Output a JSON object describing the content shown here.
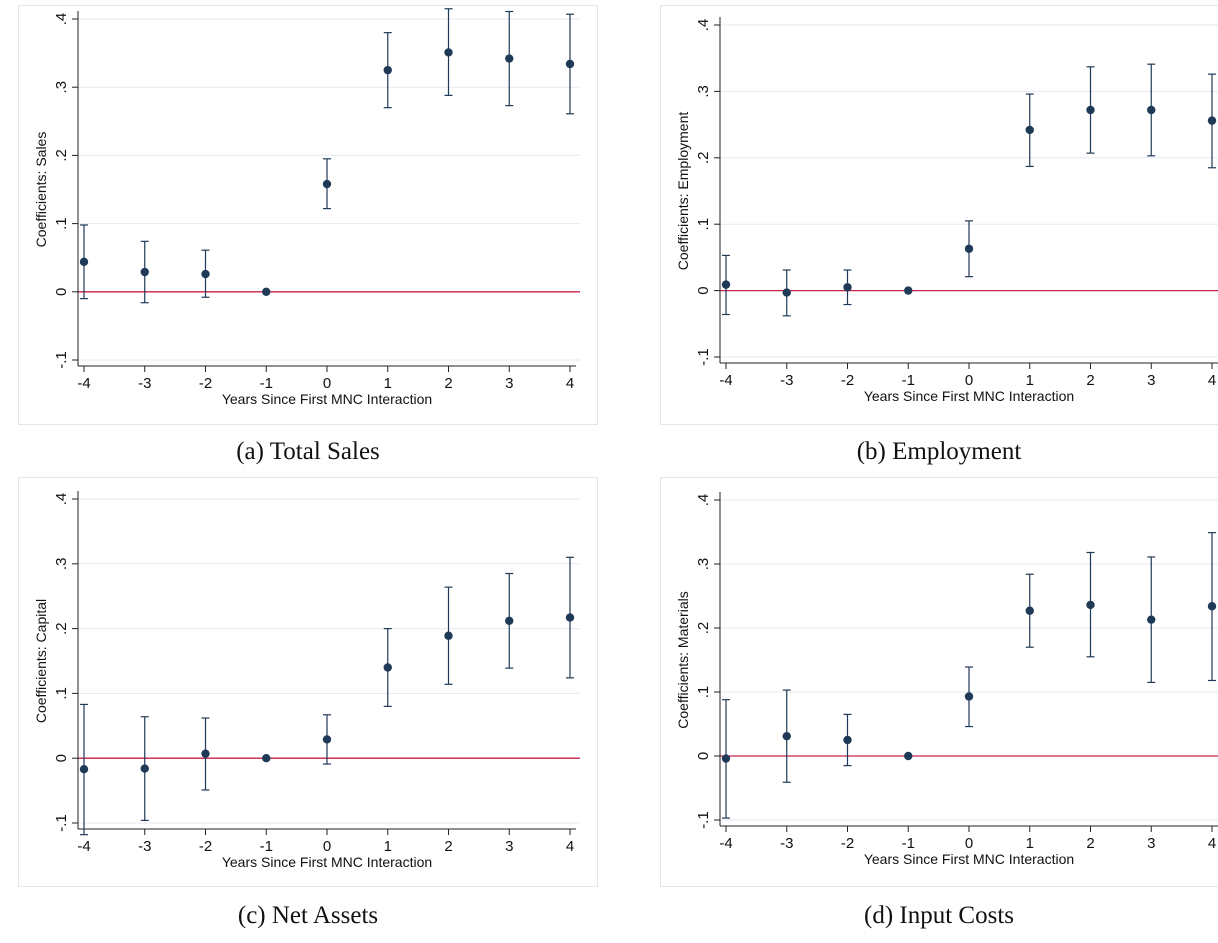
{
  "colors": {
    "marker": "#1f3a57",
    "zero_line": "#c8224a",
    "grid": "#e8eaf0",
    "axis": "#222222"
  },
  "chart_data": [
    {
      "type": "scatter",
      "caption": "(a) Total Sales",
      "xlabel": "Years Since First MNC Interaction",
      "ylabel": "Coefficients: Sales",
      "xlim": [
        -4,
        4
      ],
      "ylim": [
        -0.1,
        0.4
      ],
      "xticks": [
        "-4",
        "-3",
        "-2",
        "-1",
        "0",
        "1",
        "2",
        "3",
        "4"
      ],
      "yticks": [
        "-.1",
        "0",
        ".1",
        ".2",
        ".3",
        ".4"
      ],
      "grid": true,
      "points": [
        {
          "x": -4,
          "y": 0.044,
          "lo": -0.01,
          "hi": 0.098
        },
        {
          "x": -3,
          "y": 0.029,
          "lo": -0.016,
          "hi": 0.074
        },
        {
          "x": -2,
          "y": 0.026,
          "lo": -0.008,
          "hi": 0.061
        },
        {
          "x": -1,
          "y": 0.0,
          "lo": 0.0,
          "hi": 0.0
        },
        {
          "x": 0,
          "y": 0.158,
          "lo": 0.122,
          "hi": 0.195
        },
        {
          "x": 1,
          "y": 0.325,
          "lo": 0.27,
          "hi": 0.38
        },
        {
          "x": 2,
          "y": 0.351,
          "lo": 0.288,
          "hi": 0.415
        },
        {
          "x": 3,
          "y": 0.342,
          "lo": 0.273,
          "hi": 0.411
        },
        {
          "x": 4,
          "y": 0.334,
          "lo": 0.261,
          "hi": 0.407
        }
      ]
    },
    {
      "type": "scatter",
      "caption": "(b) Employment",
      "xlabel": "Years Since First MNC Interaction",
      "ylabel": "Coefficients: Employment",
      "xlim": [
        -4,
        4
      ],
      "ylim": [
        -0.1,
        0.4
      ],
      "xticks": [
        "-4",
        "-3",
        "-2",
        "-1",
        "0",
        "1",
        "2",
        "3",
        "4"
      ],
      "yticks": [
        "-.1",
        "0",
        ".1",
        ".2",
        ".3",
        ".4"
      ],
      "grid": true,
      "points": [
        {
          "x": -4,
          "y": 0.009,
          "lo": -0.036,
          "hi": 0.053
        },
        {
          "x": -3,
          "y": -0.003,
          "lo": -0.038,
          "hi": 0.031
        },
        {
          "x": -2,
          "y": 0.005,
          "lo": -0.021,
          "hi": 0.031
        },
        {
          "x": -1,
          "y": 0.0,
          "lo": 0.0,
          "hi": 0.0
        },
        {
          "x": 0,
          "y": 0.063,
          "lo": 0.021,
          "hi": 0.105
        },
        {
          "x": 1,
          "y": 0.242,
          "lo": 0.187,
          "hi": 0.296
        },
        {
          "x": 2,
          "y": 0.272,
          "lo": 0.207,
          "hi": 0.337
        },
        {
          "x": 3,
          "y": 0.272,
          "lo": 0.203,
          "hi": 0.341
        },
        {
          "x": 4,
          "y": 0.256,
          "lo": 0.185,
          "hi": 0.326
        }
      ]
    },
    {
      "type": "scatter",
      "caption": "(c) Net Assets",
      "xlabel": "Years Since First MNC Interaction",
      "ylabel": "Coefficients: Capital",
      "xlim": [
        -4,
        4
      ],
      "ylim": [
        -0.1,
        0.4
      ],
      "xticks": [
        "-4",
        "-3",
        "-2",
        "-1",
        "0",
        "1",
        "2",
        "3",
        "4"
      ],
      "yticks": [
        "-.1",
        "0",
        ".1",
        ".2",
        ".3",
        ".4"
      ],
      "grid": true,
      "points": [
        {
          "x": -4,
          "y": -0.017,
          "lo": -0.118,
          "hi": 0.083
        },
        {
          "x": -3,
          "y": -0.016,
          "lo": -0.096,
          "hi": 0.064
        },
        {
          "x": -2,
          "y": 0.007,
          "lo": -0.049,
          "hi": 0.062
        },
        {
          "x": -1,
          "y": 0.0,
          "lo": 0.0,
          "hi": 0.0
        },
        {
          "x": 0,
          "y": 0.029,
          "lo": -0.009,
          "hi": 0.067
        },
        {
          "x": 1,
          "y": 0.14,
          "lo": 0.08,
          "hi": 0.2
        },
        {
          "x": 2,
          "y": 0.189,
          "lo": 0.114,
          "hi": 0.264
        },
        {
          "x": 3,
          "y": 0.212,
          "lo": 0.139,
          "hi": 0.285
        },
        {
          "x": 4,
          "y": 0.217,
          "lo": 0.124,
          "hi": 0.31
        }
      ]
    },
    {
      "type": "scatter",
      "caption": "(d) Input Costs",
      "xlabel": "Years Since First MNC Interaction",
      "ylabel": "Coefficients: Materials",
      "xlim": [
        -4,
        4
      ],
      "ylim": [
        -0.1,
        0.4
      ],
      "xticks": [
        "-4",
        "-3",
        "-2",
        "-1",
        "0",
        "1",
        "2",
        "3",
        "4"
      ],
      "yticks": [
        "-.1",
        "0",
        ".1",
        ".2",
        ".3",
        ".4"
      ],
      "grid": true,
      "points": [
        {
          "x": -4,
          "y": -0.004,
          "lo": -0.097,
          "hi": 0.088
        },
        {
          "x": -3,
          "y": 0.031,
          "lo": -0.041,
          "hi": 0.103
        },
        {
          "x": -2,
          "y": 0.025,
          "lo": -0.015,
          "hi": 0.065
        },
        {
          "x": -1,
          "y": 0.0,
          "lo": 0.0,
          "hi": 0.0
        },
        {
          "x": 0,
          "y": 0.093,
          "lo": 0.046,
          "hi": 0.139
        },
        {
          "x": 1,
          "y": 0.227,
          "lo": 0.17,
          "hi": 0.284
        },
        {
          "x": 2,
          "y": 0.236,
          "lo": 0.155,
          "hi": 0.318
        },
        {
          "x": 3,
          "y": 0.213,
          "lo": 0.115,
          "hi": 0.311
        },
        {
          "x": 4,
          "y": 0.234,
          "lo": 0.118,
          "hi": 0.349
        }
      ]
    }
  ]
}
